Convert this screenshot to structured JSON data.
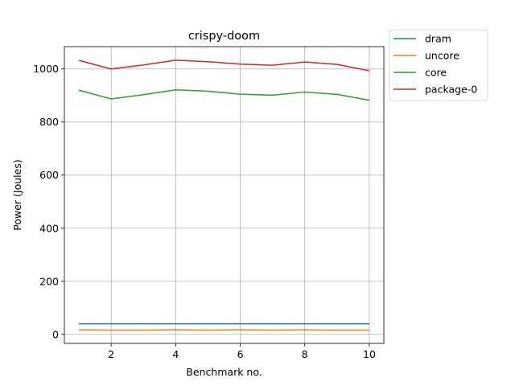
{
  "chart_data": {
    "type": "line",
    "title": "crispy-doom",
    "xlabel": "Benchmark no.",
    "ylabel": "Power (Joules)",
    "x": [
      1,
      2,
      3,
      4,
      5,
      6,
      7,
      8,
      9,
      10
    ],
    "xlim": [
      0.55,
      10.45
    ],
    "ylim": [
      -34,
      1084
    ],
    "xticks": [
      2,
      4,
      6,
      8,
      10
    ],
    "yticks": [
      0,
      200,
      400,
      600,
      800,
      1000
    ],
    "grid": true,
    "legend_position": "outside-top-right",
    "series": [
      {
        "name": "dram",
        "color": "#1f77b4",
        "values": [
          40,
          40,
          40,
          40,
          40,
          40,
          40,
          40,
          40,
          40
        ]
      },
      {
        "name": "uncore",
        "color": "#ff7f0e",
        "values": [
          17,
          16,
          16,
          17,
          16,
          17,
          16,
          17,
          16,
          16
        ]
      },
      {
        "name": "core",
        "color": "#2ca02c",
        "values": [
          920,
          887,
          903,
          921,
          916,
          905,
          901,
          913,
          904,
          882
        ]
      },
      {
        "name": "package-0",
        "color": "#d62728",
        "values": [
          1032,
          1000,
          1015,
          1033,
          1027,
          1018,
          1014,
          1026,
          1017,
          993
        ]
      }
    ]
  }
}
